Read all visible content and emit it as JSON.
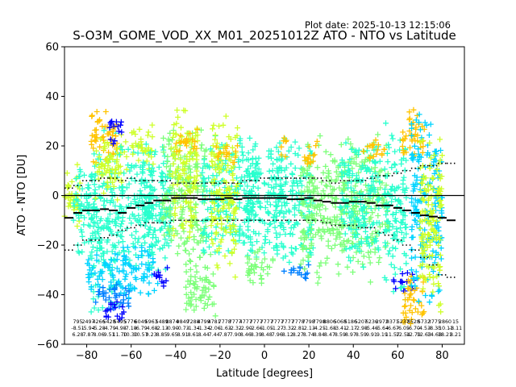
{
  "plot_date": "Plot date: 2025-10-13 12:15:06",
  "chart_data": {
    "type": "scatter",
    "title": "S-O3M_GOME_VOD_XX_M01_20251012Z ATO - NTO vs Latitude",
    "xlabel": "Latitude [degrees]",
    "ylabel": "ATO - NTO [DU]",
    "xlim": [
      -90,
      90
    ],
    "ylim": [
      -60,
      60
    ],
    "xticks": [
      -80,
      -60,
      -40,
      -20,
      0,
      20,
      40,
      60,
      80
    ],
    "yticks": [
      -60,
      -40,
      -20,
      0,
      20,
      40,
      60
    ],
    "zero_line": 0,
    "grid": false,
    "marker": "plus",
    "colormap": [
      "#0000ff",
      "#0080ff",
      "#00d4ff",
      "#29ffce",
      "#7dff7a",
      "#ceff29",
      "#ffc400",
      "#ff6800"
    ],
    "bin_centers": [
      -88,
      -84,
      -80,
      -76,
      -72,
      -68,
      -64,
      -60,
      -56,
      -52,
      -48,
      -44,
      -40,
      -36,
      -32,
      -28,
      -24,
      -20,
      -16,
      -12,
      -8,
      -4,
      0,
      4,
      8,
      12,
      16,
      20,
      24,
      28,
      32,
      36,
      40,
      44,
      48,
      52,
      56,
      60,
      64,
      68,
      72,
      76,
      80,
      84
    ],
    "mean": [
      -9,
      -7,
      -6,
      -6,
      -5.5,
      -6,
      -7,
      -5,
      -4,
      -3,
      -2,
      -2,
      -1,
      -1,
      -1,
      -1.5,
      -1.5,
      -1.5,
      -1,
      -1.5,
      -1,
      -1,
      -1,
      -1,
      -1,
      -1.5,
      -1.5,
      -1,
      -2,
      -2.5,
      -3,
      -3,
      -2.5,
      -2.5,
      -3,
      -4,
      -4,
      -5,
      -6,
      -7,
      -8,
      -8.5,
      -9,
      -10
    ],
    "mean_plus_sd": [
      3,
      4,
      6,
      6,
      7,
      7,
      6,
      7,
      6,
      6,
      6,
      6,
      5,
      5,
      5,
      5,
      5,
      5,
      5,
      5,
      6,
      6,
      7,
      7,
      7,
      7,
      7,
      7,
      7,
      6,
      5,
      6,
      6,
      6,
      7,
      8,
      8,
      9,
      10,
      11,
      12,
      12,
      13,
      13
    ],
    "mean_minus_sd": [
      -22,
      -20,
      -18,
      -18,
      -17,
      -16,
      -14,
      -13,
      -12,
      -11,
      -11,
      -11,
      -10,
      -10,
      -10,
      -10,
      -10,
      -10,
      -10,
      -10,
      -10,
      -10,
      -10,
      -10,
      -10,
      -10,
      -10,
      -10,
      -10,
      -11,
      -12,
      -12,
      -12,
      -13,
      -13,
      -15,
      -16,
      -18,
      -20,
      -22,
      -25,
      -28,
      -32,
      -33
    ],
    "stats_rows": {
      "count": [
        "795",
        "2497",
        "4266",
        "5428",
        "5495",
        "5776",
        "6049",
        "5963",
        "5489",
        "8874",
        "9849",
        "7288",
        "4799",
        "4781",
        "7778",
        "7777",
        "4777",
        "7777",
        "7777",
        "7777",
        "7777",
        "7778",
        "7798",
        "7798",
        "8806",
        "5068",
        "5186",
        "5207",
        "6236",
        "2972",
        "9371",
        "5237",
        "8528",
        "5732",
        "3775",
        "2860",
        "15"
      ],
      "mean": [
        "-8.51",
        "-5.94",
        "-5.28",
        "-4.79",
        "-4.98",
        "-7.18",
        "-6.79",
        "-4.68",
        "-2.13",
        "-0.90",
        "-0.73",
        "-1.34",
        "-1.34",
        "-2.06",
        "-1.63",
        "-2.32",
        "-2.90",
        "-2.66",
        "-1.05",
        "-1.27",
        "-3.32",
        "-2.81",
        "-2.13",
        "-4.25",
        "-1.68",
        "-3.41",
        "-2.17",
        "-2.98",
        "-5.46",
        "-5.64",
        "-6.67",
        "-6.05",
        "-6.70",
        "-4.53",
        "-8.35",
        "-10.11",
        "-8.11"
      ],
      "sd": [
        "6.28",
        "7.87",
        "8.06",
        "9.51",
        "11.70",
        "10.30",
        "10.57",
        "9.23",
        "8.85",
        "9.65",
        "8.91",
        "8.61",
        "8.44",
        "7.44",
        "7.87",
        "7.90",
        "8.46",
        "8.39",
        "8.48",
        "7.96",
        "8.12",
        "8.27",
        "8.74",
        "8.84",
        "8.47",
        "8.59",
        "8.97",
        "8.59",
        "9.91",
        "9.19",
        "11.57",
        "12.54",
        "12.79",
        "12.63",
        "14.68",
        "18.21",
        "8.21"
      ]
    },
    "clusters": [
      {
        "x": [
          -90,
          -83
        ],
        "y": [
          -18,
          16
        ],
        "color": "#ceff29"
      },
      {
        "x": [
          -86,
          -76
        ],
        "y": [
          -28,
          18
        ],
        "color": "#29ffce"
      },
      {
        "x": [
          -78,
          -66
        ],
        "y": [
          -50,
          28
        ],
        "color": "#29ffce"
      },
      {
        "x": [
          -80,
          -62
        ],
        "y": [
          -40,
          -22
        ],
        "color": "#00d4ff"
      },
      {
        "x": [
          -76,
          -60
        ],
        "y": [
          -47,
          -34
        ],
        "color": "#0080ff"
      },
      {
        "x": [
          -72,
          -62
        ],
        "y": [
          -52,
          -42
        ],
        "color": "#0000ff"
      },
      {
        "x": [
          -78,
          -66
        ],
        "y": [
          12,
          38
        ],
        "color": "#ffc400"
      },
      {
        "x": [
          -76,
          -62
        ],
        "y": [
          -4,
          26
        ],
        "color": "#ceff29"
      },
      {
        "x": [
          -70,
          -64
        ],
        "y": [
          20,
          35
        ],
        "color": "#0000ff"
      },
      {
        "x": [
          -66,
          -50
        ],
        "y": [
          -30,
          24
        ],
        "color": "#29ffce"
      },
      {
        "x": [
          -64,
          -48
        ],
        "y": [
          -42,
          -18
        ],
        "color": "#00d4ff"
      },
      {
        "x": [
          -60,
          -50
        ],
        "y": [
          10,
          30
        ],
        "color": "#ceff29"
      },
      {
        "x": [
          -55,
          -42
        ],
        "y": [
          -36,
          22
        ],
        "color": "#29ffce"
      },
      {
        "x": [
          -50,
          -42
        ],
        "y": [
          -38,
          -28
        ],
        "color": "#0000ff"
      },
      {
        "x": [
          -46,
          -26
        ],
        "y": [
          -30,
          30
        ],
        "color": "#7dff7a"
      },
      {
        "x": [
          -42,
          -30
        ],
        "y": [
          -20,
          38
        ],
        "color": "#ceff29"
      },
      {
        "x": [
          -40,
          -30
        ],
        "y": [
          15,
          28
        ],
        "color": "#ffc400"
      },
      {
        "x": [
          -36,
          -22
        ],
        "y": [
          -50,
          -22
        ],
        "color": "#7dff7a"
      },
      {
        "x": [
          -28,
          -4
        ],
        "y": [
          -28,
          28
        ],
        "color": "#29ffce"
      },
      {
        "x": [
          -24,
          -12
        ],
        "y": [
          -36,
          36
        ],
        "color": "#ceff29"
      },
      {
        "x": [
          -22,
          -12
        ],
        "y": [
          12,
          22
        ],
        "color": "#ffc400"
      },
      {
        "x": [
          -8,
          8
        ],
        "y": [
          -30,
          26
        ],
        "color": "#29ffce"
      },
      {
        "x": [
          -8,
          4
        ],
        "y": [
          -38,
          -20
        ],
        "color": "#7dff7a"
      },
      {
        "x": [
          4,
          22
        ],
        "y": [
          -30,
          24
        ],
        "color": "#29ffce"
      },
      {
        "x": [
          8,
          20
        ],
        "y": [
          -34,
          -26
        ],
        "color": "#0080ff"
      },
      {
        "x": [
          6,
          10
        ],
        "y": [
          14,
          24
        ],
        "color": "#ffc400"
      },
      {
        "x": [
          16,
          30
        ],
        "y": [
          -36,
          26
        ],
        "color": "#7dff7a"
      },
      {
        "x": [
          18,
          24
        ],
        "y": [
          10,
          24
        ],
        "color": "#ffc400"
      },
      {
        "x": [
          30,
          56
        ],
        "y": [
          -36,
          26
        ],
        "color": "#7dff7a"
      },
      {
        "x": [
          34,
          52
        ],
        "y": [
          -30,
          24
        ],
        "color": "#29ffce"
      },
      {
        "x": [
          44,
          54
        ],
        "y": [
          14,
          24
        ],
        "color": "#ffc400"
      },
      {
        "x": [
          54,
          64
        ],
        "y": [
          -44,
          30
        ],
        "color": "#29ffce"
      },
      {
        "x": [
          58,
          68
        ],
        "y": [
          -40,
          -30
        ],
        "color": "#0000ff"
      },
      {
        "x": [
          62,
          72
        ],
        "y": [
          12,
          38
        ],
        "color": "#ffc400"
      },
      {
        "x": [
          62,
          72
        ],
        "y": [
          -55,
          -30
        ],
        "color": "#ffc400"
      },
      {
        "x": [
          66,
          80
        ],
        "y": [
          -48,
          36
        ],
        "color": "#00d4ff"
      },
      {
        "x": [
          70,
          80
        ],
        "y": [
          -52,
          30
        ],
        "color": "#ceff29"
      }
    ]
  }
}
